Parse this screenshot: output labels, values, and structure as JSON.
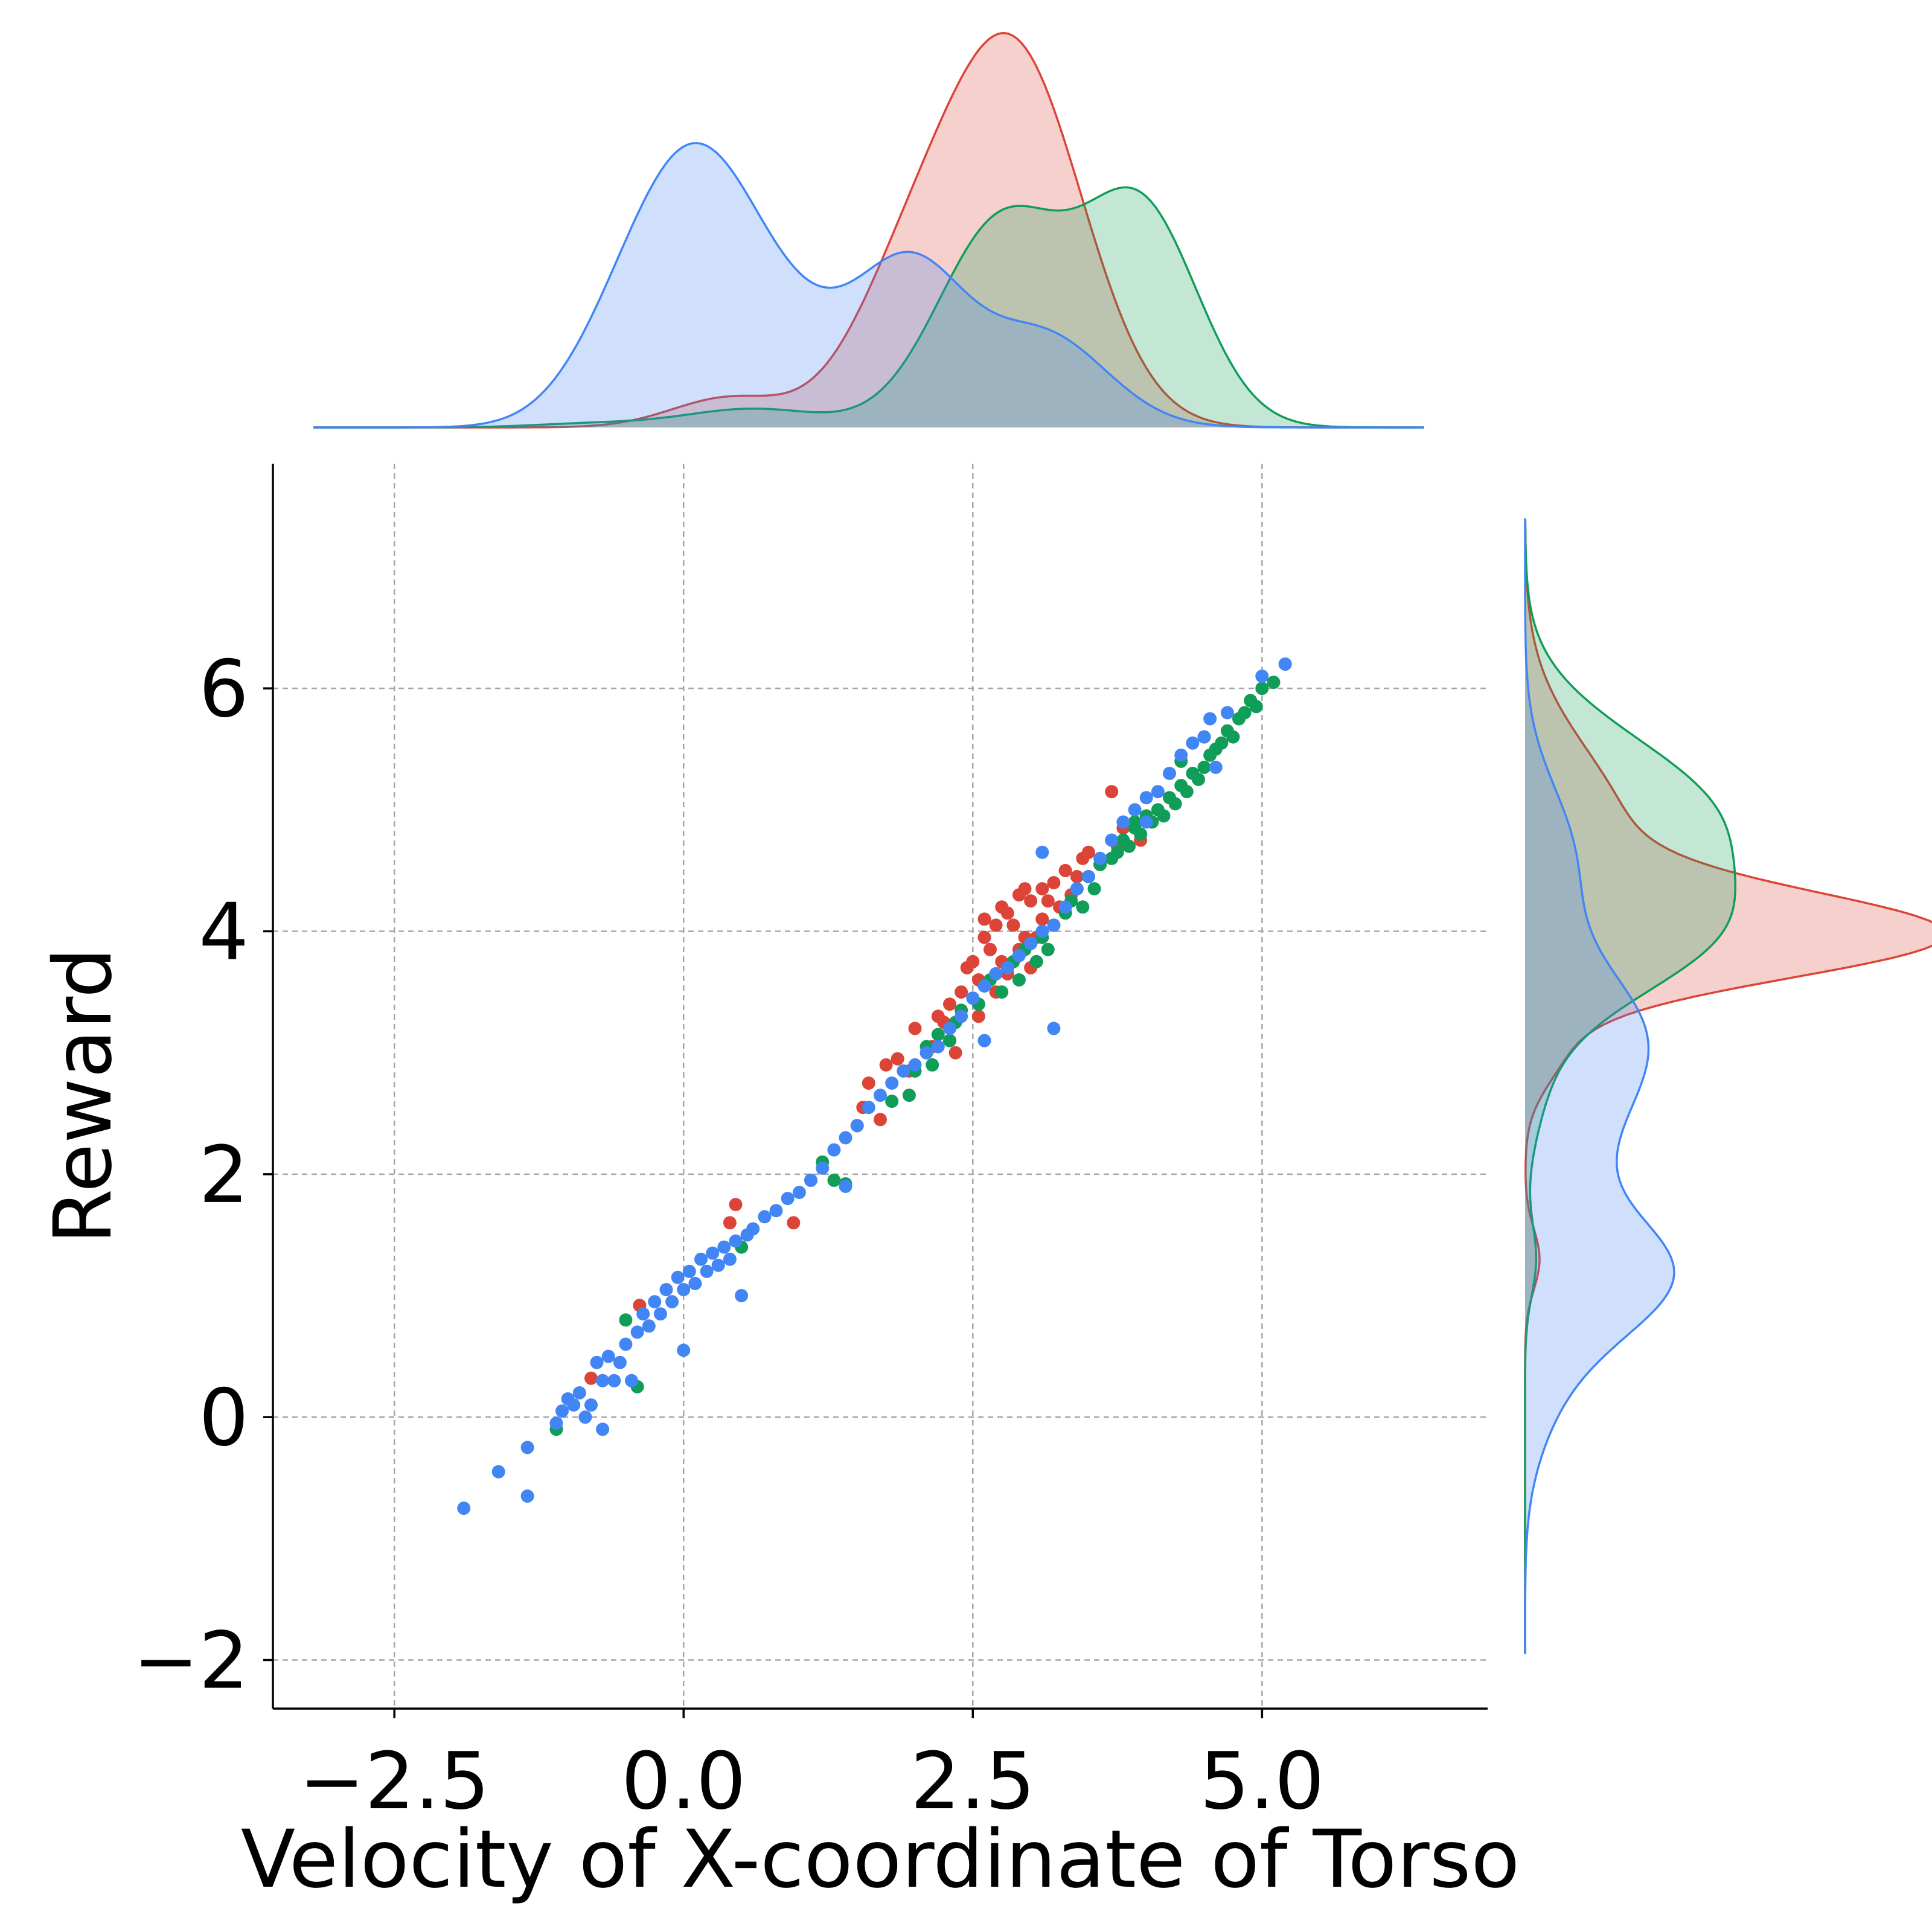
{
  "chart_data": {
    "type": "scatter",
    "title": "",
    "xlabel": "Velocity of X-coordinate of Torso",
    "ylabel": "Reward",
    "xlim": [
      -3.55,
      6.95
    ],
    "ylim": [
      -2.4,
      7.85
    ],
    "x_ticks": [
      -2.5,
      0.0,
      2.5,
      5.0
    ],
    "x_tick_labels": [
      "−2.5",
      "0.0",
      "2.5",
      "5.0"
    ],
    "y_ticks": [
      -2,
      0,
      2,
      4,
      6
    ],
    "y_tick_labels": [
      "−2",
      "0",
      "2",
      "4",
      "6"
    ],
    "grid": true,
    "marginal_top": "kde",
    "marginal_right": "kde",
    "series": [
      {
        "color": "#db4437",
        "points": [
          [
            -0.38,
            0.92
          ],
          [
            -0.8,
            0.32
          ],
          [
            0.4,
            1.6
          ],
          [
            0.45,
            1.75
          ],
          [
            0.95,
            1.6
          ],
          [
            1.1,
            1.95
          ],
          [
            1.5,
            2.4
          ],
          [
            1.55,
            2.55
          ],
          [
            1.7,
            2.45
          ],
          [
            1.6,
            2.75
          ],
          [
            1.75,
            2.9
          ],
          [
            1.85,
            2.95
          ],
          [
            1.95,
            2.85
          ],
          [
            2.0,
            3.2
          ],
          [
            2.1,
            3.0
          ],
          [
            2.15,
            3.05
          ],
          [
            2.2,
            3.3
          ],
          [
            2.25,
            3.25
          ],
          [
            2.3,
            3.1
          ],
          [
            2.3,
            3.4
          ],
          [
            2.35,
            3.0
          ],
          [
            2.4,
            3.5
          ],
          [
            2.45,
            3.7
          ],
          [
            2.5,
            3.75
          ],
          [
            2.55,
            3.3
          ],
          [
            2.55,
            3.6
          ],
          [
            2.6,
            3.95
          ],
          [
            2.6,
            4.1
          ],
          [
            2.65,
            3.85
          ],
          [
            2.7,
            3.5
          ],
          [
            2.7,
            4.05
          ],
          [
            2.75,
            4.2
          ],
          [
            2.75,
            3.75
          ],
          [
            2.8,
            3.65
          ],
          [
            2.8,
            4.15
          ],
          [
            2.85,
            4.05
          ],
          [
            2.9,
            4.3
          ],
          [
            2.9,
            3.85
          ],
          [
            2.95,
            3.95
          ],
          [
            3.0,
            4.25
          ],
          [
            3.0,
            3.7
          ],
          [
            3.05,
            3.95
          ],
          [
            3.1,
            4.1
          ],
          [
            3.1,
            4.35
          ],
          [
            3.15,
            4.25
          ],
          [
            3.2,
            4.4
          ],
          [
            3.25,
            4.2
          ],
          [
            3.3,
            4.5
          ],
          [
            3.35,
            4.3
          ],
          [
            3.4,
            4.45
          ],
          [
            3.45,
            4.6
          ],
          [
            3.5,
            4.65
          ],
          [
            3.6,
            4.55
          ],
          [
            3.7,
            4.75
          ],
          [
            3.75,
            4.7
          ],
          [
            3.8,
            4.85
          ],
          [
            3.7,
            5.15
          ],
          [
            3.95,
            4.75
          ],
          [
            2.95,
            4.35
          ]
        ]
      },
      {
        "color": "#0f9d58",
        "points": [
          [
            -1.1,
            -0.1
          ],
          [
            -0.4,
            0.25
          ],
          [
            -0.5,
            0.8
          ],
          [
            0.5,
            1.4
          ],
          [
            1.3,
            1.95
          ],
          [
            1.4,
            1.92
          ],
          [
            1.2,
            2.1
          ],
          [
            1.8,
            2.6
          ],
          [
            1.95,
            2.65
          ],
          [
            2.0,
            2.85
          ],
          [
            2.1,
            3.05
          ],
          [
            2.15,
            2.9
          ],
          [
            2.2,
            3.15
          ],
          [
            2.3,
            3.1
          ],
          [
            2.35,
            3.25
          ],
          [
            2.4,
            3.35
          ],
          [
            2.5,
            3.45
          ],
          [
            2.55,
            3.4
          ],
          [
            2.6,
            3.55
          ],
          [
            2.65,
            3.6
          ],
          [
            2.7,
            3.65
          ],
          [
            2.75,
            3.5
          ],
          [
            2.8,
            3.7
          ],
          [
            2.85,
            3.75
          ],
          [
            2.9,
            3.6
          ],
          [
            2.95,
            3.85
          ],
          [
            3.0,
            3.9
          ],
          [
            3.05,
            3.75
          ],
          [
            3.1,
            3.95
          ],
          [
            3.15,
            3.85
          ],
          [
            3.2,
            4.05
          ],
          [
            3.3,
            4.15
          ],
          [
            3.35,
            4.25
          ],
          [
            3.4,
            4.35
          ],
          [
            3.45,
            4.2
          ],
          [
            3.5,
            4.45
          ],
          [
            3.55,
            4.35
          ],
          [
            3.6,
            4.55
          ],
          [
            3.7,
            4.6
          ],
          [
            3.75,
            4.65
          ],
          [
            3.8,
            4.75
          ],
          [
            3.85,
            4.7
          ],
          [
            3.9,
            4.85
          ],
          [
            3.95,
            4.8
          ],
          [
            4.0,
            4.95
          ],
          [
            4.05,
            4.9
          ],
          [
            4.1,
            5.0
          ],
          [
            4.15,
            4.95
          ],
          [
            4.2,
            5.1
          ],
          [
            4.25,
            5.05
          ],
          [
            4.3,
            5.2
          ],
          [
            4.35,
            5.15
          ],
          [
            4.4,
            5.3
          ],
          [
            4.45,
            5.25
          ],
          [
            4.5,
            5.35
          ],
          [
            4.55,
            5.45
          ],
          [
            4.6,
            5.5
          ],
          [
            4.65,
            5.55
          ],
          [
            4.7,
            5.65
          ],
          [
            4.75,
            5.6
          ],
          [
            4.8,
            5.75
          ],
          [
            4.85,
            5.8
          ],
          [
            4.9,
            5.9
          ],
          [
            4.95,
            5.85
          ],
          [
            5.0,
            6.0
          ],
          [
            5.1,
            6.05
          ],
          [
            5.2,
            6.2
          ],
          [
            4.5,
            5.6
          ],
          [
            4.3,
            5.4
          ],
          [
            3.9,
            4.9
          ]
        ]
      },
      {
        "color": "#4285f4",
        "points": [
          [
            -1.9,
            -0.75
          ],
          [
            -1.6,
            -0.45
          ],
          [
            -1.35,
            -0.25
          ],
          [
            -1.35,
            -0.65
          ],
          [
            -1.1,
            -0.05
          ],
          [
            -1.05,
            0.05
          ],
          [
            -1.0,
            0.15
          ],
          [
            -0.95,
            0.1
          ],
          [
            -0.9,
            0.2
          ],
          [
            -0.85,
            0.0
          ],
          [
            -0.8,
            0.1
          ],
          [
            -0.75,
            0.45
          ],
          [
            -0.7,
            -0.1
          ],
          [
            -0.7,
            0.3
          ],
          [
            -0.65,
            0.5
          ],
          [
            -0.6,
            0.3
          ],
          [
            -0.55,
            0.45
          ],
          [
            -0.5,
            0.6
          ],
          [
            -0.45,
            0.3
          ],
          [
            -0.4,
            0.7
          ],
          [
            -0.35,
            0.85
          ],
          [
            -0.3,
            0.75
          ],
          [
            -0.25,
            0.95
          ],
          [
            -0.2,
            0.85
          ],
          [
            -0.15,
            1.05
          ],
          [
            -0.1,
            0.95
          ],
          [
            -0.05,
            1.15
          ],
          [
            0.0,
            0.55
          ],
          [
            0.0,
            1.05
          ],
          [
            0.05,
            1.2
          ],
          [
            0.1,
            1.1
          ],
          [
            0.15,
            1.3
          ],
          [
            0.2,
            1.2
          ],
          [
            0.25,
            1.35
          ],
          [
            0.3,
            1.25
          ],
          [
            0.35,
            1.4
          ],
          [
            0.4,
            1.3
          ],
          [
            0.45,
            1.45
          ],
          [
            0.5,
            1.0
          ],
          [
            0.55,
            1.5
          ],
          [
            0.6,
            1.55
          ],
          [
            0.7,
            1.65
          ],
          [
            0.8,
            1.7
          ],
          [
            0.9,
            1.8
          ],
          [
            1.0,
            1.85
          ],
          [
            1.1,
            1.95
          ],
          [
            1.2,
            2.05
          ],
          [
            1.3,
            2.2
          ],
          [
            1.4,
            2.3
          ],
          [
            1.5,
            2.4
          ],
          [
            1.6,
            2.55
          ],
          [
            1.7,
            2.65
          ],
          [
            1.8,
            2.75
          ],
          [
            1.9,
            2.85
          ],
          [
            2.0,
            2.9
          ],
          [
            2.1,
            3.0
          ],
          [
            2.2,
            3.05
          ],
          [
            2.3,
            3.2
          ],
          [
            2.4,
            3.3
          ],
          [
            2.5,
            3.45
          ],
          [
            2.6,
            3.55
          ],
          [
            2.7,
            3.65
          ],
          [
            2.8,
            3.7
          ],
          [
            2.9,
            3.8
          ],
          [
            3.0,
            3.9
          ],
          [
            3.1,
            4.0
          ],
          [
            3.2,
            3.2
          ],
          [
            3.2,
            4.05
          ],
          [
            3.3,
            4.2
          ],
          [
            3.4,
            4.35
          ],
          [
            3.5,
            4.45
          ],
          [
            3.6,
            4.6
          ],
          [
            3.7,
            4.75
          ],
          [
            3.8,
            4.9
          ],
          [
            3.9,
            5.0
          ],
          [
            4.0,
            5.1
          ],
          [
            4.1,
            5.15
          ],
          [
            4.2,
            5.3
          ],
          [
            4.3,
            5.45
          ],
          [
            4.4,
            5.55
          ],
          [
            4.5,
            5.6
          ],
          [
            4.55,
            5.75
          ],
          [
            4.6,
            5.35
          ],
          [
            4.7,
            5.8
          ],
          [
            5.0,
            6.1
          ],
          [
            5.2,
            6.2
          ],
          [
            4.0,
            4.9
          ],
          [
            3.1,
            4.65
          ],
          [
            2.6,
            3.1
          ],
          [
            1.4,
            1.9
          ]
        ]
      }
    ],
    "marginal_x": {
      "x_range": [
        -3.2,
        6.4
      ],
      "series": [
        {
          "color": "#db4437",
          "peaks": [
            [
              2.85,
              0.6,
              1.0
            ],
            [
              1.9,
              0.5,
              0.3
            ],
            [
              0.4,
              0.5,
              0.08
            ]
          ]
        },
        {
          "color": "#0f9d58",
          "peaks": [
            [
              2.75,
              0.55,
              0.55
            ],
            [
              3.95,
              0.5,
              0.58
            ],
            [
              0.6,
              0.6,
              0.05
            ],
            [
              -0.8,
              0.5,
              0.01
            ]
          ]
        },
        {
          "color": "#4285f4",
          "peaks": [
            [
              0.15,
              0.55,
              0.64
            ],
            [
              2.0,
              0.45,
              0.35
            ],
            [
              -0.5,
              0.5,
              0.18
            ],
            [
              3.1,
              0.55,
              0.25
            ],
            [
              1.2,
              0.6,
              0.2
            ]
          ]
        }
      ]
    },
    "marginal_y": {
      "y_range": [
        -1.95,
        7.4
      ],
      "series": [
        {
          "color": "#db4437",
          "peaks": [
            [
              3.95,
              0.35,
              1.0
            ],
            [
              4.75,
              0.75,
              0.28
            ],
            [
              1.3,
              0.25,
              0.04
            ],
            [
              3.0,
              0.3,
              0.08
            ]
          ]
        },
        {
          "color": "#0f9d58",
          "peaks": [
            [
              4.95,
              0.65,
              0.5
            ],
            [
              3.9,
              0.5,
              0.38
            ],
            [
              1.3,
              0.3,
              0.03
            ],
            [
              2.8,
              0.5,
              0.05
            ]
          ]
        },
        {
          "color": "#4285f4",
          "peaks": [
            [
              1.2,
              0.5,
              0.38
            ],
            [
              3.1,
              0.6,
              0.32
            ],
            [
              4.6,
              0.6,
              0.13
            ],
            [
              0.3,
              0.55,
              0.08
            ],
            [
              2.2,
              0.45,
              0.1
            ]
          ]
        }
      ]
    }
  }
}
